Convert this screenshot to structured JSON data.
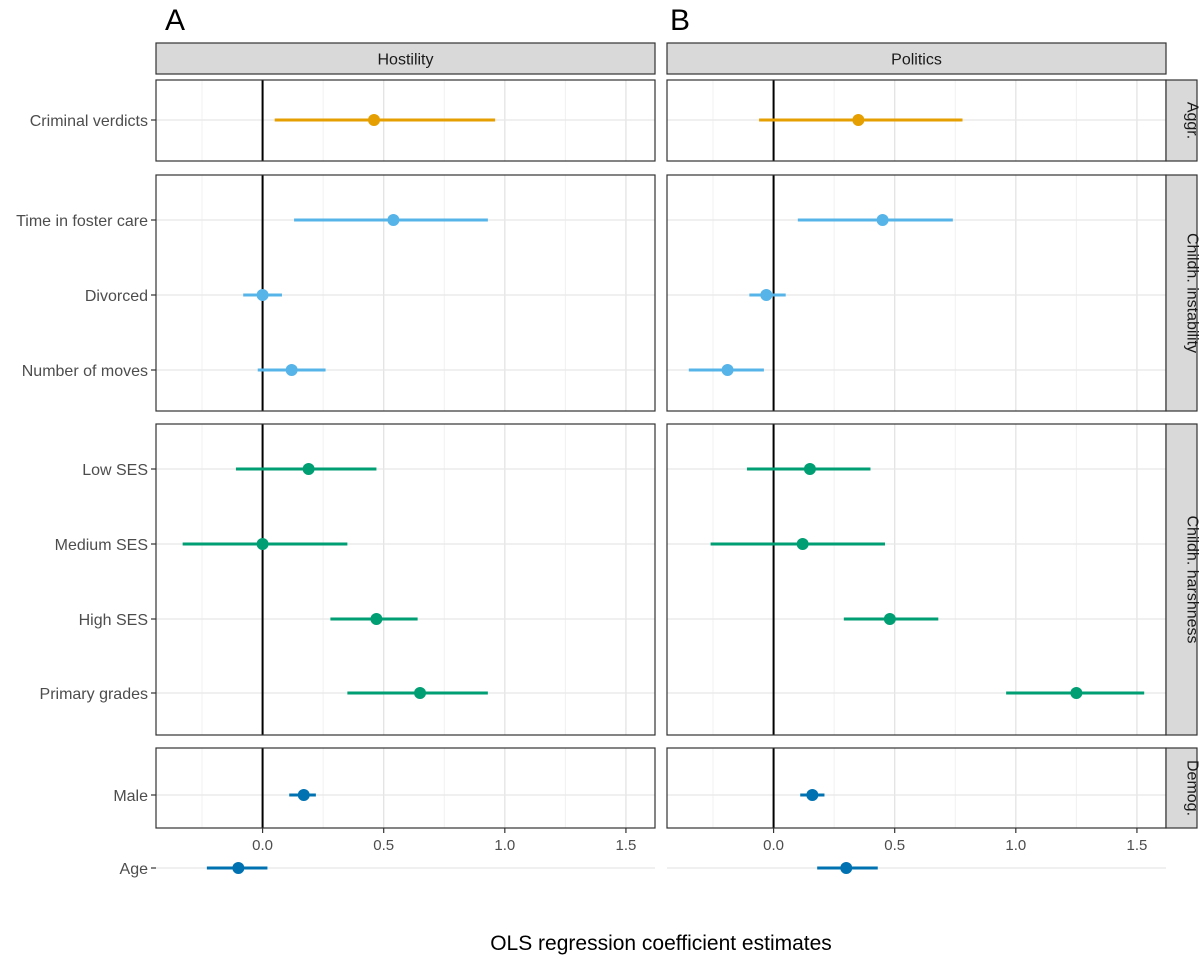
{
  "figure": {
    "panel_labels": [
      "A",
      "B"
    ],
    "x_axis_title": "OLS regression coefficient estimates"
  },
  "chart_data": {
    "type": "scatter",
    "subtype": "coefficient-plot-with-intervals",
    "xlabel": "OLS regression coefficient estimates",
    "xlim": [
      -0.44,
      1.62
    ],
    "x_ticks": [
      0.0,
      0.5,
      1.0,
      1.5
    ],
    "x_tick_labels": [
      "0.0",
      "0.5",
      "1.0",
      "1.5"
    ],
    "reference_line_x": 0,
    "grid": true,
    "legend": "none",
    "columns": [
      "Hostility",
      "Politics"
    ],
    "groups": [
      {
        "name": "Aggr.",
        "color": "#E69F00",
        "items": [
          "Criminal verdicts"
        ]
      },
      {
        "name": "Childh. instability",
        "color": "#56B4E9",
        "items": [
          "Time in foster care",
          "Divorced",
          "Number of moves"
        ]
      },
      {
        "name": "Childh. harshness",
        "color": "#009E73",
        "items": [
          "Low SES",
          "Medium SES",
          "High SES",
          "Primary grades"
        ]
      },
      {
        "name": "Demog.",
        "color": "#0072B2",
        "items": [
          "Male",
          "Age"
        ]
      }
    ],
    "series": [
      {
        "name": "Hostility",
        "estimates": [
          {
            "group": "Aggr.",
            "label": "Criminal verdicts",
            "est": 0.46,
            "lo": 0.05,
            "hi": 0.96
          },
          {
            "group": "Childh. instability",
            "label": "Time in foster care",
            "est": 0.54,
            "lo": 0.13,
            "hi": 0.93
          },
          {
            "group": "Childh. instability",
            "label": "Divorced",
            "est": 0.0,
            "lo": -0.08,
            "hi": 0.08
          },
          {
            "group": "Childh. instability",
            "label": "Number of moves",
            "est": 0.12,
            "lo": -0.02,
            "hi": 0.26
          },
          {
            "group": "Childh. harshness",
            "label": "Low SES",
            "est": 0.19,
            "lo": -0.11,
            "hi": 0.47
          },
          {
            "group": "Childh. harshness",
            "label": "Medium SES",
            "est": 0.0,
            "lo": -0.33,
            "hi": 0.35
          },
          {
            "group": "Childh. harshness",
            "label": "High SES",
            "est": 0.47,
            "lo": 0.28,
            "hi": 0.64
          },
          {
            "group": "Childh. harshness",
            "label": "Primary grades",
            "est": 0.65,
            "lo": 0.35,
            "hi": 0.93
          },
          {
            "group": "Demog.",
            "label": "Male",
            "est": 0.17,
            "lo": 0.11,
            "hi": 0.22
          },
          {
            "group": "Demog.",
            "label": "Age",
            "est": -0.1,
            "lo": -0.23,
            "hi": 0.02
          }
        ]
      },
      {
        "name": "Politics",
        "estimates": [
          {
            "group": "Aggr.",
            "label": "Criminal verdicts",
            "est": 0.35,
            "lo": -0.06,
            "hi": 0.78
          },
          {
            "group": "Childh. instability",
            "label": "Time in foster care",
            "est": 0.45,
            "lo": 0.1,
            "hi": 0.74
          },
          {
            "group": "Childh. instability",
            "label": "Divorced",
            "est": -0.03,
            "lo": -0.1,
            "hi": 0.05
          },
          {
            "group": "Childh. instability",
            "label": "Number of moves",
            "est": -0.19,
            "lo": -0.35,
            "hi": -0.04
          },
          {
            "group": "Childh. harshness",
            "label": "Low SES",
            "est": 0.15,
            "lo": -0.11,
            "hi": 0.4
          },
          {
            "group": "Childh. harshness",
            "label": "Medium SES",
            "est": 0.12,
            "lo": -0.26,
            "hi": 0.46
          },
          {
            "group": "Childh. harshness",
            "label": "High SES",
            "est": 0.48,
            "lo": 0.29,
            "hi": 0.68
          },
          {
            "group": "Childh. harshness",
            "label": "Primary grades",
            "est": 1.25,
            "lo": 0.96,
            "hi": 1.53
          },
          {
            "group": "Demog.",
            "label": "Male",
            "est": 0.16,
            "lo": 0.11,
            "hi": 0.21
          },
          {
            "group": "Demog.",
            "label": "Age",
            "est": 0.3,
            "lo": 0.18,
            "hi": 0.43
          }
        ]
      }
    ]
  }
}
